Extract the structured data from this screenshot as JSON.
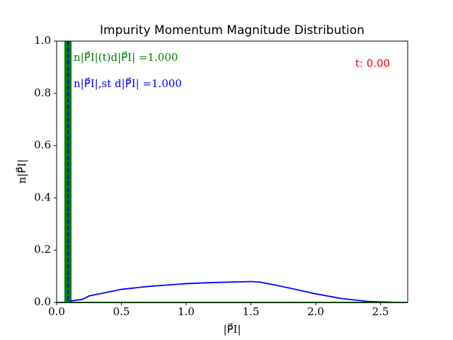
{
  "chart_data": {
    "type": "line",
    "title": "Impurity Momentum Magnitude Distribution",
    "xlabel": "|P⃗I|",
    "ylabel": "n|P⃗I|",
    "annotations": [
      {
        "text": "n|P⃗I|(t)d|P⃗I| =1.000",
        "color": "#008000"
      },
      {
        "text": "n|P⃗I|,st d|P⃗I| =1.000",
        "color": "#0000ff"
      },
      {
        "text": "t: 0.00",
        "color": "#ff0000"
      }
    ],
    "xlim": [
      0,
      2.71
    ],
    "ylim": [
      0,
      1
    ],
    "xticks": [
      {
        "value": 0,
        "label": "0.0"
      },
      0.5,
      {
        "value": 1,
        "label": "1.0"
      },
      1.5,
      {
        "value": 2,
        "label": "2.0"
      },
      2.5
    ],
    "yticks": [
      {
        "value": 0,
        "label": "0.0"
      },
      0.2,
      0.4,
      0.6,
      0.8,
      {
        "value": 1,
        "label": "1.0"
      }
    ],
    "histogram": {
      "color": "#008000",
      "bins": [
        0.06,
        0.115
      ],
      "counts": [
        1.0
      ]
    },
    "vline": {
      "x": 0.088,
      "color": "#0000ff"
    },
    "series": [
      {
        "color": "#0000ff",
        "x": [
          0.1,
          0.2,
          0.25,
          0.4,
          0.5,
          0.7,
          1.0,
          1.2,
          1.5,
          1.57,
          1.7,
          1.8,
          2.0,
          2.2,
          2.4,
          2.6,
          2.71
        ],
        "values": [
          0.005,
          0.012,
          0.025,
          0.04,
          0.05,
          0.061,
          0.072,
          0.076,
          0.08,
          0.078,
          0.065,
          0.055,
          0.033,
          0.015,
          0.004,
          0.0005,
          0
        ]
      }
    ]
  }
}
